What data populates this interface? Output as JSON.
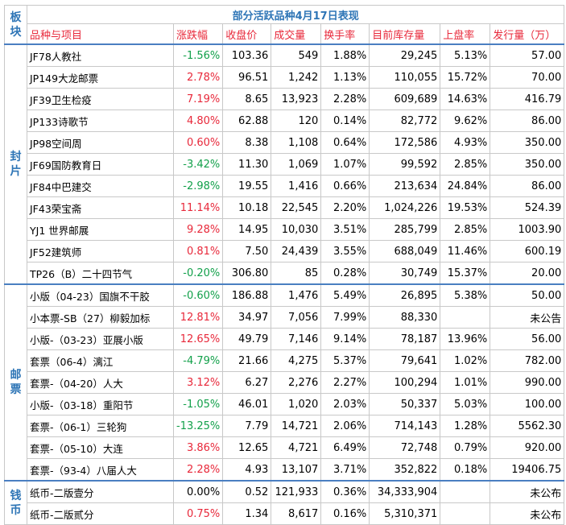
{
  "header": {
    "title": "部分活跃品种4月17日表现",
    "block": "板块",
    "columns": [
      "品种与项目",
      "涨跌幅",
      "收盘价",
      "成交量",
      "换手率",
      "目前库存量",
      "上盘率",
      "发行量（万）"
    ]
  },
  "sections": [
    {
      "label": "封片",
      "rows": [
        [
          "JF78人教社",
          "-1.56%",
          "103.36",
          "549",
          "1.88%",
          "29,245",
          "5.13%",
          "57.00"
        ],
        [
          "JP149大龙邮票",
          "2.78%",
          "96.51",
          "1,242",
          "1.13%",
          "110,055",
          "15.72%",
          "70.00"
        ],
        [
          "JF39卫生检疫",
          "7.19%",
          "8.65",
          "13,923",
          "2.28%",
          "609,689",
          "14.63%",
          "416.79"
        ],
        [
          "JP133诗歌节",
          "4.80%",
          "62.88",
          "120",
          "0.14%",
          "82,772",
          "9.62%",
          "86.00"
        ],
        [
          "JP98空间周",
          "0.60%",
          "8.38",
          "1,108",
          "0.64%",
          "172,586",
          "4.93%",
          "350.00"
        ],
        [
          "JF69国防教育日",
          "-3.42%",
          "11.30",
          "1,069",
          "1.07%",
          "99,592",
          "2.85%",
          "350.00"
        ],
        [
          "JF84中巴建交",
          "-2.98%",
          "19.55",
          "1,416",
          "0.66%",
          "213,634",
          "24.84%",
          "86.00"
        ],
        [
          "JF43荣宝斋",
          "11.14%",
          "10.18",
          "22,545",
          "2.20%",
          "1,024,226",
          "19.53%",
          "524.39"
        ],
        [
          "YJ1 世界邮展",
          "9.28%",
          "14.95",
          "10,030",
          "3.51%",
          "285,799",
          "2.85%",
          "1003.90"
        ],
        [
          "JF52建筑师",
          "0.81%",
          "7.50",
          "24,439",
          "3.55%",
          "688,049",
          "11.46%",
          "600.19"
        ],
        [
          "TP26（B）二十四节气",
          "-0.20%",
          "306.80",
          "85",
          "0.28%",
          "30,749",
          "15.37%",
          "20.00"
        ]
      ]
    },
    {
      "label": "邮票",
      "rows": [
        [
          "小版（04-23）国旗不干胶",
          "-0.60%",
          "186.88",
          "1,476",
          "5.49%",
          "26,895",
          "5.38%",
          "50.00"
        ],
        [
          "小本票-SB（27）柳毅加标",
          "12.81%",
          "34.97",
          "7,056",
          "7.99%",
          "88,330",
          null,
          "未公告"
        ],
        [
          "小版-（03-23）亚展小版",
          "12.65%",
          "49.79",
          "7,146",
          "9.14%",
          "78,187",
          "13.96%",
          "56.00"
        ],
        [
          "套票（06-4）漓江",
          "-4.79%",
          "21.66",
          "4,275",
          "5.37%",
          "79,641",
          "1.02%",
          "782.00"
        ],
        [
          "套票-（04-20）人大",
          "3.12%",
          "6.27",
          "2,276",
          "2.27%",
          "100,294",
          "1.01%",
          "990.00"
        ],
        [
          "小版-（03-18）重阳节",
          "-1.05%",
          "46.01",
          "1,020",
          "2.03%",
          "50,337",
          "5.03%",
          "100.00"
        ],
        [
          "套票-（06-1）三轮狗",
          "-13.25%",
          "7.79",
          "14,721",
          "2.06%",
          "714,143",
          "1.28%",
          "5562.30"
        ],
        [
          "套票-（05-10）大连",
          "3.86%",
          "12.65",
          "4,721",
          "6.49%",
          "72,748",
          "0.79%",
          "920.00"
        ],
        [
          "套票-（93-4）八届人大",
          "2.28%",
          "4.93",
          "13,107",
          "3.71%",
          "352,822",
          "0.18%",
          "19406.75"
        ]
      ]
    },
    {
      "label": "钱币",
      "rows": [
        [
          "纸币-二版壹分",
          "0.00%",
          "0.52",
          "121,933",
          "0.36%",
          "34,333,904",
          null,
          "未公布"
        ],
        [
          "纸币-二版贰分",
          "0.75%",
          "1.34",
          "8,617",
          "0.16%",
          "5,310,371",
          null,
          "未公布"
        ]
      ]
    }
  ]
}
